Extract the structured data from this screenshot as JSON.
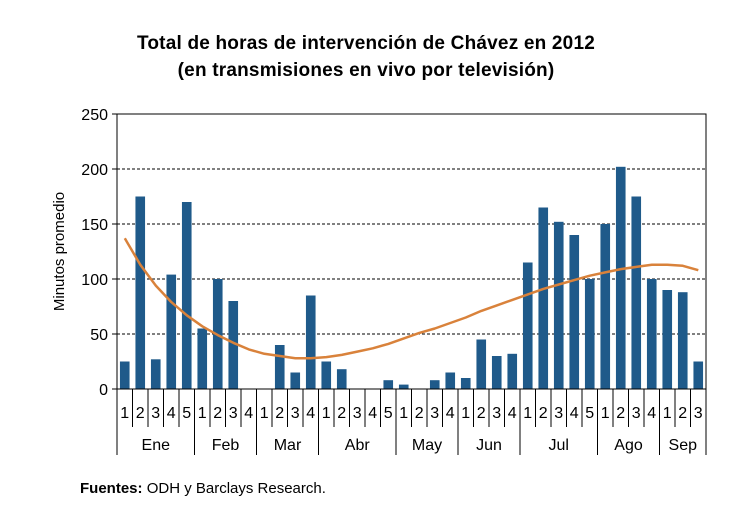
{
  "title_line1": "Total de horas de intervención  de Chávez en 2012",
  "title_line2": "(en transmisiones  en vivo por televisión)",
  "source_label": "Fuentes:",
  "source_text": "ODH y Barclays Research.",
  "chart_data": {
    "type": "bar",
    "ylabel": "Minutos promedio",
    "ylim": [
      0,
      250
    ],
    "yticks": [
      0,
      50,
      100,
      150,
      200,
      250
    ],
    "grid": true,
    "bar_color": "#1f5a8a",
    "trend_color": "#d9823b",
    "months": [
      {
        "name": "Ene",
        "weeks": [
          "1",
          "2",
          "3",
          "4",
          "5"
        ]
      },
      {
        "name": "Feb",
        "weeks": [
          "1",
          "2",
          "3",
          "4"
        ]
      },
      {
        "name": "Mar",
        "weeks": [
          "1",
          "2",
          "3",
          "4"
        ]
      },
      {
        "name": "Abr",
        "weeks": [
          "1",
          "2",
          "3",
          "4",
          "5"
        ]
      },
      {
        "name": "May",
        "weeks": [
          "1",
          "2",
          "3",
          "4"
        ]
      },
      {
        "name": "Jun",
        "weeks": [
          "1",
          "2",
          "3",
          "4"
        ]
      },
      {
        "name": "Jul",
        "weeks": [
          "1",
          "2",
          "3",
          "4",
          "5"
        ]
      },
      {
        "name": "Ago",
        "weeks": [
          "1",
          "2",
          "3",
          "4"
        ]
      },
      {
        "name": "Sep",
        "weeks": [
          "1",
          "2",
          "3"
        ]
      }
    ],
    "values": [
      25,
      175,
      27,
      104,
      170,
      55,
      100,
      80,
      0,
      0,
      40,
      15,
      85,
      25,
      18,
      0,
      0,
      8,
      4,
      0,
      8,
      15,
      10,
      45,
      30,
      32,
      115,
      165,
      152,
      140,
      100,
      150,
      202,
      175,
      100,
      90,
      88,
      25
    ],
    "trend": [
      137,
      113,
      94,
      79,
      67,
      57,
      49,
      42,
      36,
      32,
      30,
      28,
      28,
      29,
      31,
      34,
      37,
      41,
      46,
      51,
      55,
      60,
      65,
      71,
      76,
      81,
      86,
      91,
      95,
      99,
      103,
      106,
      109,
      111,
      113,
      113,
      112,
      108
    ]
  }
}
